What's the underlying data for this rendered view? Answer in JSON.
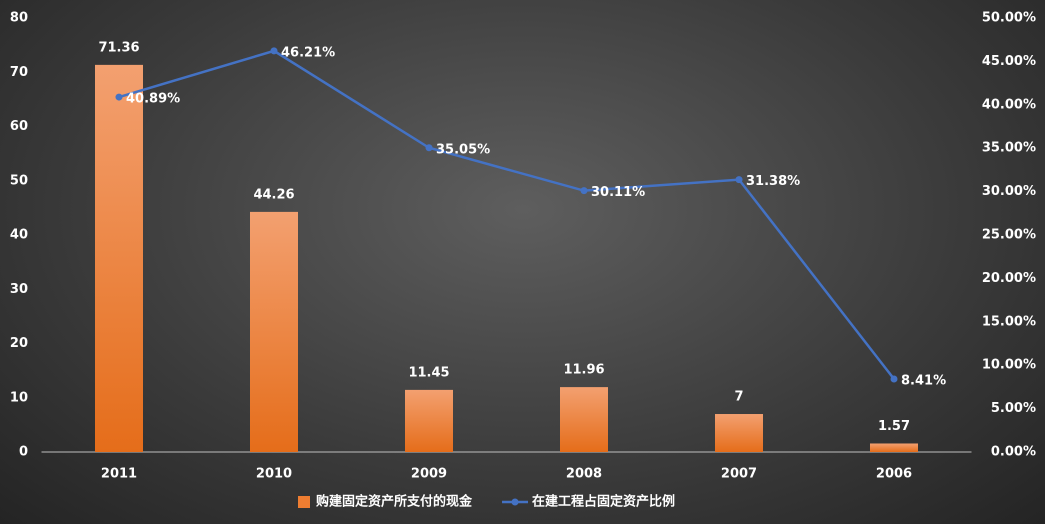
{
  "chart_data": {
    "type": "bar",
    "categories": [
      "2011",
      "2010",
      "2009",
      "2008",
      "2007",
      "2006"
    ],
    "series": [
      {
        "name": "购建固定资产所支付的现金",
        "type": "bar",
        "color": "#ee7d31",
        "values": [
          71.36,
          44.26,
          11.45,
          11.96,
          7,
          1.57
        ]
      },
      {
        "name": "在建工程占固定资产比例",
        "type": "line",
        "axis": "y2",
        "color": "#4472c4",
        "values": [
          40.89,
          46.21,
          35.05,
          30.11,
          31.38,
          8.41
        ],
        "value_labels": [
          "40.89%",
          "46.21%",
          "35.05%",
          "30.11%",
          "31.38%",
          "8.41%"
        ]
      }
    ],
    "ylim": [
      0,
      80
    ],
    "yticks": [
      0,
      10,
      20,
      30,
      40,
      50,
      60,
      70,
      80
    ],
    "y2lim": [
      0,
      50
    ],
    "y2ticks": [
      {
        "value": 0,
        "label": "0.00%"
      },
      {
        "value": 5,
        "label": "5.00%"
      },
      {
        "value": 10,
        "label": "10.00%"
      },
      {
        "value": 15,
        "label": "15.00%"
      },
      {
        "value": 20,
        "label": "20.00%"
      },
      {
        "value": 25,
        "label": "25.00%"
      },
      {
        "value": 30,
        "label": "30.00%"
      },
      {
        "value": 35,
        "label": "35.00%"
      },
      {
        "value": 40,
        "label": "40.00%"
      },
      {
        "value": 45,
        "label": "45.00%"
      },
      {
        "value": 50,
        "label": "50.00%"
      }
    ],
    "grid": false,
    "legend": "bottom"
  }
}
